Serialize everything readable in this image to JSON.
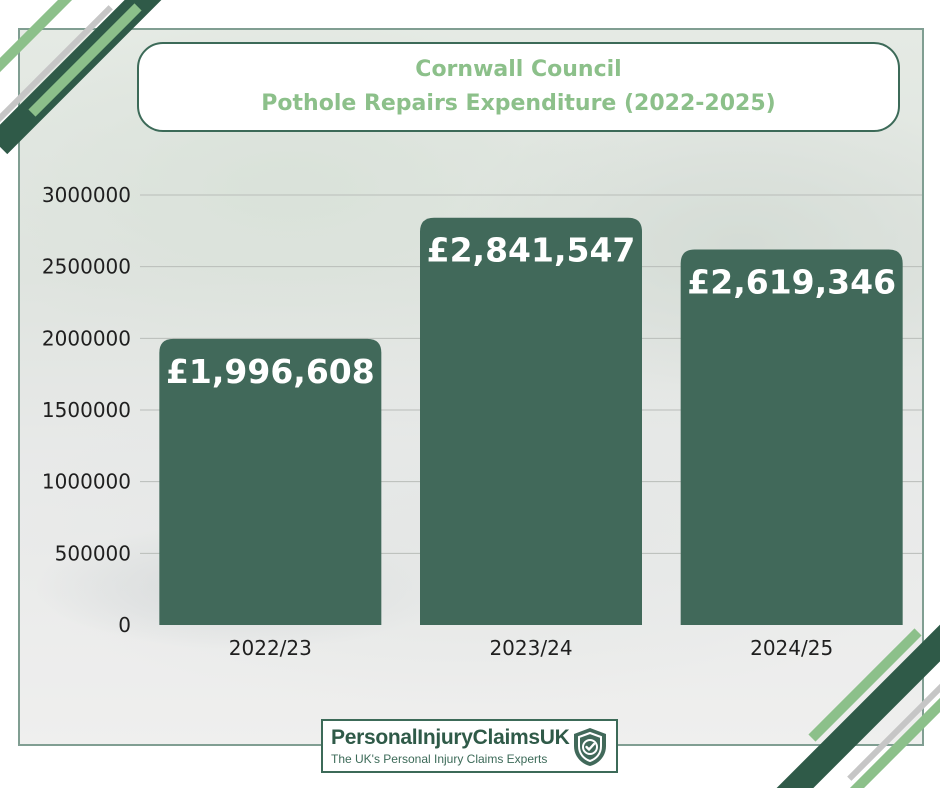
{
  "title": {
    "line1": "Cornwall Council",
    "line2": "Pothole Repairs Expenditure (2022-2025)"
  },
  "colors": {
    "bar": "#41695a",
    "title_text": "#8cc08a",
    "frame": "#3c6a58",
    "stripe_dark": "#2f5a48",
    "stripe_light": "#8cc08a"
  },
  "chart_data": {
    "type": "bar",
    "categories": [
      "2022/23",
      "2023/24",
      "2024/25"
    ],
    "values": [
      1996608,
      2841547,
      2619346
    ],
    "data_labels": [
      "£1,996,608",
      "£2,841,547",
      "£2,619,346"
    ],
    "title": "Cornwall Council Pothole Repairs Expenditure (2022-2025)",
    "xlabel": "",
    "ylabel": "",
    "ylim": [
      0,
      3000000
    ],
    "yticks": [
      "0",
      "500000",
      "1000000",
      "1500000",
      "2000000",
      "2500000",
      "3000000"
    ],
    "grid": true,
    "legend": "none"
  },
  "logo": {
    "name": "PersonalInjuryClaimsUK",
    "tagline": "The UK's Personal Injury Claims Experts",
    "icon": "shield-check-icon"
  }
}
